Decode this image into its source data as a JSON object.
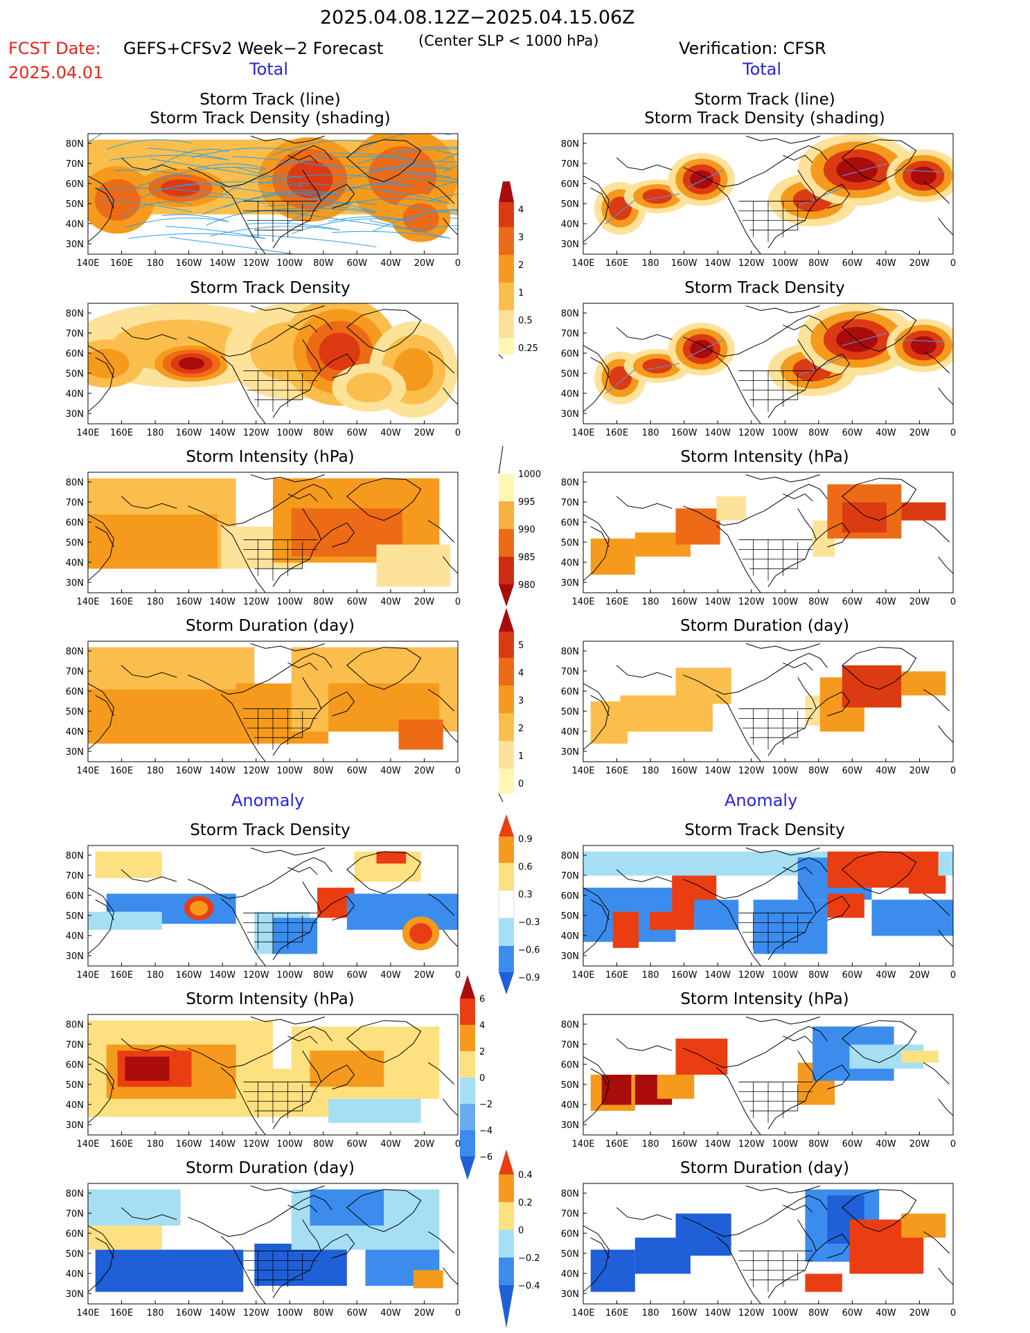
{
  "header": {
    "period": "2025.04.08.12Z−2025.04.15.06Z",
    "fcst_label": "FCST Date:",
    "fcst_date": "2025.04.01",
    "forecast_title": "GEFS+CFSv2 Week−2 Forecast",
    "criterion": "(Center SLP < 1000 hPa)",
    "verification": "Verification: CFSR"
  },
  "sections": {
    "total_left": "Total",
    "total_right": "Total",
    "anomaly_left": "Anomaly",
    "anomaly_right": "Anomaly"
  },
  "panel_titles": {
    "track_line": "Storm Track (line)",
    "track_shading": "Storm Track Density (shading)",
    "density": "Storm Track Density",
    "intensity": "Storm Intensity (hPa)",
    "duration": "Storm Duration (day)"
  },
  "axes": {
    "lat_labels": [
      "80N",
      "70N",
      "60N",
      "50N",
      "40N",
      "30N"
    ],
    "lon_labels": [
      "140E",
      "160E",
      "180",
      "160W",
      "140W",
      "120W",
      "100W",
      "80W",
      "60W",
      "40W",
      "20W",
      "0"
    ]
  },
  "colorbars": {
    "density_total": [
      "4",
      "3",
      "2",
      "1",
      "0.5",
      "0.25"
    ],
    "intensity_total": [
      "1000",
      "995",
      "990",
      "985",
      "980"
    ],
    "duration_total": [
      "5",
      "4",
      "3",
      "2",
      "1",
      "0"
    ],
    "density_anom": [
      "0.9",
      "0.6",
      "0.3",
      "−0.3",
      "−0.6",
      "−0.9"
    ],
    "intensity_anom": [
      "6",
      "4",
      "2",
      "0",
      "−2",
      "−4",
      "−6"
    ],
    "duration_anom": [
      "0.4",
      "0.2",
      "0",
      "−0.2",
      "−0.4"
    ]
  },
  "colors": {
    "total_scale": [
      "#fff6b4",
      "#fde29a",
      "#fbbd4c",
      "#f59a1c",
      "#ed6a16",
      "#dc3a12",
      "#aa0c0c"
    ],
    "anomaly_scale": [
      "#1f5fd8",
      "#3c8cee",
      "#a6dff4",
      "#ffffff",
      "#fde080",
      "#f59a1c",
      "#ea3e12",
      "#aa0c0c"
    ],
    "track_line": "#2a9fe6",
    "header_red": "#e8241c",
    "section_blue": "#2424e0"
  }
}
